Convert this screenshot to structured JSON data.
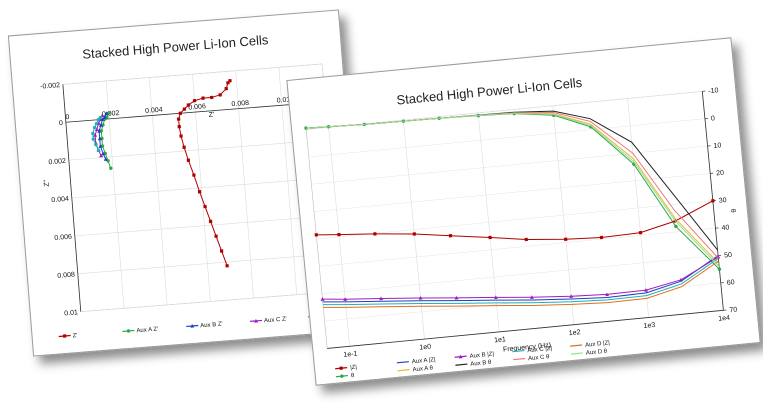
{
  "charts": [
    {
      "id": "nyquist",
      "title": "Stacked High Power Li-Ion Cells",
      "type": "scatter",
      "xlabel": "Z'",
      "ylabel": "Z\"",
      "x_ticks": [
        "0",
        "0.002",
        "0.004",
        "0.006",
        "0.008",
        "0.01",
        "0.012"
      ],
      "y_ticks": [
        "-0.002",
        "0",
        "0.002",
        "0.004",
        "0.006",
        "0.008",
        "0.01"
      ],
      "xlim": [
        0,
        0.012
      ],
      "ylim": [
        -0.002,
        0.01
      ],
      "legend": [
        "Z'",
        "Aux A Z'",
        "Aux B Z'",
        "Aux C Z'",
        "Aux D Z'"
      ]
    },
    {
      "id": "bode",
      "title": "Stacked High Power Li-Ion Cells",
      "type": "line",
      "xlabel": "Frequency (Hz)",
      "ylabel_right": "θ",
      "x_ticks": [
        "1e-1",
        "1e0",
        "1e1",
        "1e2",
        "1e3",
        "1e4"
      ],
      "y_ticks_right": [
        "-10",
        "0",
        "10",
        "20",
        "30",
        "40",
        "50",
        "60",
        "70"
      ],
      "legend": [
        "|Z|",
        "θ",
        "Aux A |Z|",
        "Aux A θ",
        "Aux B |Z|",
        "Aux B θ",
        "Aux C |Z|",
        "Aux C θ",
        "Aux D |Z|",
        "Aux D θ"
      ]
    }
  ],
  "chart_data": [
    {
      "type": "scatter",
      "title": "Stacked High Power Li-Ion Cells",
      "xlabel": "Z'",
      "ylabel": "Z\"",
      "xlim": [
        0,
        0.012
      ],
      "ylim": [
        -0.002,
        0.01
      ],
      "y_inverted": true,
      "grid": true,
      "legend_position": "bottom",
      "series": [
        {
          "name": "Z'",
          "color": "#b00000",
          "marker": "square",
          "x": [
            0.0077,
            0.0076,
            0.0075,
            0.0072,
            0.0068,
            0.0064,
            0.006,
            0.0057,
            0.0055,
            0.0053,
            0.0052,
            0.0052,
            0.00525,
            0.00535,
            0.0055,
            0.0057,
            0.0059,
            0.0061,
            0.0063,
            0.0065,
            0.0067,
            0.0069
          ],
          "y": [
            -0.0015,
            -0.0014,
            -0.0011,
            -0.0008,
            -0.0007,
            -0.0007,
            -0.0006,
            -0.0004,
            -0.0002,
            0.0,
            0.0003,
            0.0007,
            0.0012,
            0.0018,
            0.0025,
            0.0033,
            0.0042,
            0.005,
            0.0058,
            0.0066,
            0.0074,
            0.0082
          ]
        },
        {
          "name": "Aux A Z'",
          "color": "#2aa84a",
          "marker": "circle",
          "x": [
            0.002,
            0.0019,
            0.0018,
            0.0017,
            0.0016,
            0.0016,
            0.0016,
            0.0017,
            0.0018,
            0.0019
          ],
          "y": [
            -0.0003,
            -0.0001,
            0.0,
            0.0003,
            0.0006,
            0.001,
            0.0014,
            0.0018,
            0.0022,
            0.0026
          ]
        },
        {
          "name": "Aux B Z'",
          "color": "#1f3fbf",
          "marker": "triangle",
          "x": [
            0.0019,
            0.0018,
            0.0017,
            0.0016,
            0.0015,
            0.0015,
            0.0015,
            0.0016,
            0.0017
          ],
          "y": [
            -0.0003,
            -0.0001,
            0.0,
            0.0003,
            0.0006,
            0.001,
            0.0014,
            0.0018,
            0.0021
          ]
        },
        {
          "name": "Aux C Z'",
          "color": "#9b1fbf",
          "marker": "triangle",
          "x": [
            0.0017,
            0.0016,
            0.0015,
            0.0014,
            0.0013,
            0.0013,
            0.0014,
            0.0015
          ],
          "y": [
            -0.0002,
            0.0,
            0.0002,
            0.0005,
            0.0008,
            0.0012,
            0.0016,
            0.0019
          ]
        },
        {
          "name": "Aux D Z'",
          "color": "#20b0b8",
          "marker": "circle",
          "x": [
            0.0016,
            0.0015,
            0.0014,
            0.0013,
            0.0012,
            0.0012,
            0.0013,
            0.0014
          ],
          "y": [
            -0.0001,
            0.0,
            0.0002,
            0.0004,
            0.0007,
            0.001,
            0.0013,
            0.0016
          ]
        }
      ]
    },
    {
      "type": "line",
      "title": "Stacked High Power Li-Ion Cells",
      "xlabel": "Frequency (Hz)",
      "ylabel_right": "θ",
      "x_scale": "log",
      "xlim": [
        0.05,
        10000
      ],
      "ylim_right": [
        -10,
        70
      ],
      "y_right_inverted": true,
      "grid": true,
      "legend_position": "bottom-left",
      "x": [
        0.05,
        0.1,
        0.3,
        1,
        3,
        10,
        30,
        100,
        300,
        1000,
        3000,
        10000
      ],
      "series": [
        {
          "name": "θ",
          "color": "#2aa84a",
          "marker": "circle",
          "values": [
            -10.5,
            -10.2,
            -9.8,
            -9.6,
            -9.4,
            -9.0,
            -8.5,
            -6.5,
            -1,
            14,
            38,
            55
          ]
        },
        {
          "name": "|Z|",
          "color": "#b00000",
          "marker": "square",
          "values": [
            28.5,
            29.2,
            30.2,
            31.6,
            33.5,
            35.5,
            37.5,
            38.8,
            39.4,
            39.0,
            36.0,
            30.0
          ]
        },
        {
          "name": "Aux A |Z|",
          "color": "#1f3fbf",
          "values": [
            53.0,
            53.8,
            54.8,
            56.0,
            57.2,
            58.4,
            59.6,
            60.6,
            61.3,
            61.0,
            58.0,
            50.0
          ]
        },
        {
          "name": "Aux A θ",
          "color": "#e8b838",
          "values": [
            -10.5,
            -10.2,
            -9.8,
            -9.6,
            -9.4,
            -9.1,
            -8.7,
            -7.0,
            -2,
            12,
            35,
            53
          ]
        },
        {
          "name": "Aux B |Z|",
          "color": "#9b1fbf",
          "marker": "triangle",
          "values": [
            52.0,
            52.8,
            53.8,
            55.0,
            56.2,
            57.4,
            58.6,
            59.6,
            60.2,
            60.0,
            57.5,
            50.5
          ]
        },
        {
          "name": "Aux B θ",
          "color": "#222222",
          "values": [
            -10.5,
            -10.2,
            -9.8,
            -9.6,
            -9.4,
            -9.2,
            -9.0,
            -8.0,
            -4,
            6,
            26,
            48
          ]
        },
        {
          "name": "Aux C |Z|",
          "color": "#20b0b8",
          "values": [
            54.0,
            54.8,
            55.8,
            57.0,
            58.2,
            59.4,
            60.6,
            61.6,
            62.2,
            62.0,
            59.0,
            51.0
          ]
        },
        {
          "name": "Aux C θ",
          "color": "#f07878",
          "values": [
            -10.5,
            -10.2,
            -9.8,
            -9.6,
            -9.4,
            -9.1,
            -8.8,
            -7.5,
            -3,
            10,
            32,
            51
          ]
        },
        {
          "name": "Aux D |Z|",
          "color": "#e07020",
          "values": [
            55.0,
            55.8,
            56.8,
            58.0,
            59.2,
            60.4,
            61.6,
            62.6,
            63.2,
            63.0,
            60.0,
            52.0
          ]
        },
        {
          "name": "Aux D θ",
          "color": "#90e090",
          "values": [
            -10.5,
            -10.2,
            -9.8,
            -9.6,
            -9.4,
            -9.1,
            -8.6,
            -6.8,
            -1.5,
            13,
            36,
            54
          ]
        }
      ]
    }
  ]
}
